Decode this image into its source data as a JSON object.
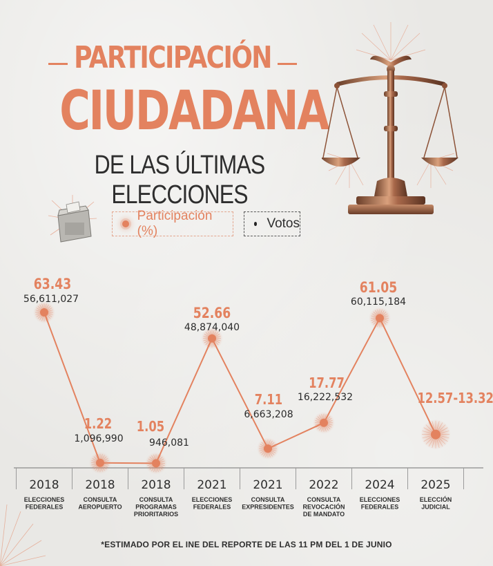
{
  "header": {
    "title_line1": "PARTICIPACIÓN",
    "title_line2": "CIUDADANA",
    "title_line3": "DE LAS ÚLTIMAS ELECCIONES"
  },
  "legend": {
    "participation_label": "Participación (%)",
    "votes_label": "Votos"
  },
  "footnote": "*ESTIMADO POR EL INE DEL REPORTE DE LAS 11 PM DEL 1 DE JUNIO",
  "colors": {
    "accent": "#e3825f",
    "text": "#2e2e2e",
    "background": "#e9e8e5"
  },
  "icons": {
    "ballot": "ballot-box-icon",
    "scale": "scales-of-justice-icon"
  },
  "chart_data": {
    "type": "line",
    "ylim": [
      0,
      70
    ],
    "points": [
      {
        "year": "2018",
        "category": [
          "ELECCIONES",
          "FEDERALES"
        ],
        "participation": 63.43,
        "participation_label": "63.43",
        "votes": "56,611,027"
      },
      {
        "year": "2018",
        "category": [
          "CONSULTA",
          "AEROPUERTO"
        ],
        "participation": 1.22,
        "participation_label": "1.22",
        "votes": "1,096,990"
      },
      {
        "year": "2018",
        "category": [
          "CONSULTA",
          "PROGRAMAS",
          "PRIORITARIOS"
        ],
        "participation": 1.05,
        "participation_label": "1.05",
        "votes": "946,081"
      },
      {
        "year": "2021",
        "category": [
          "ELECCIONES",
          "FEDERALES"
        ],
        "participation": 52.66,
        "participation_label": "52.66",
        "votes": "48,874,040"
      },
      {
        "year": "2021",
        "category": [
          "CONSULTA",
          "EXPRESIDENTES"
        ],
        "participation": 7.11,
        "participation_label": "7.11",
        "votes": "6,663,208"
      },
      {
        "year": "2022",
        "category": [
          "CONSULTA",
          "REVOCACIÓN",
          "DE MANDATO"
        ],
        "participation": 17.77,
        "participation_label": "17.77",
        "votes": "16,222,532"
      },
      {
        "year": "2024",
        "category": [
          "ELECCIONES",
          "FEDERALES"
        ],
        "participation": 61.05,
        "participation_label": "61.05",
        "votes": "60,115,184"
      },
      {
        "year": "2025",
        "category": [
          "ELECCIÓN",
          "JUDICIAL"
        ],
        "participation": 12.945,
        "participation_label": "12.57-13.32*",
        "votes": ""
      }
    ]
  }
}
